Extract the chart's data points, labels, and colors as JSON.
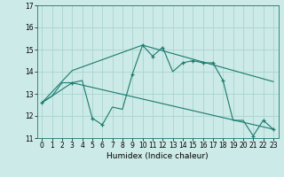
{
  "title": "",
  "xlabel": "Humidex (Indice chaleur)",
  "bg_color": "#cceae7",
  "line_color": "#1a7a6e",
  "grid_color": "#aad4d0",
  "xlim": [
    -0.5,
    23.5
  ],
  "ylim": [
    11,
    17
  ],
  "yticks": [
    11,
    12,
    13,
    14,
    15,
    16,
    17
  ],
  "xticks": [
    0,
    1,
    2,
    3,
    4,
    5,
    6,
    7,
    8,
    9,
    10,
    11,
    12,
    13,
    14,
    15,
    16,
    17,
    18,
    19,
    20,
    21,
    22,
    23
  ],
  "series1_x": [
    0,
    1,
    2,
    3,
    4,
    5,
    6,
    7,
    8,
    9,
    10,
    11,
    12,
    13,
    14,
    15,
    16,
    17,
    18,
    19,
    20,
    21,
    22,
    23
  ],
  "series1_y": [
    12.6,
    12.9,
    13.5,
    13.5,
    13.6,
    11.9,
    11.6,
    12.4,
    12.3,
    13.9,
    15.2,
    14.7,
    15.1,
    14.0,
    14.4,
    14.5,
    14.4,
    14.4,
    13.6,
    11.8,
    11.8,
    11.1,
    11.8,
    11.4
  ],
  "series2_x": [
    0,
    3,
    10,
    23
  ],
  "series2_y": [
    12.6,
    14.05,
    15.2,
    13.55
  ],
  "series3_x": [
    0,
    3,
    23
  ],
  "series3_y": [
    12.6,
    13.5,
    11.4
  ],
  "marker_x1": [
    0,
    3,
    5,
    6,
    9,
    10,
    11,
    12,
    14,
    15,
    16,
    17,
    18,
    21,
    22,
    23
  ],
  "marker_y1": [
    12.6,
    13.5,
    11.9,
    11.6,
    13.9,
    15.2,
    14.7,
    15.1,
    14.4,
    14.5,
    14.4,
    14.4,
    13.6,
    11.1,
    11.8,
    11.4
  ],
  "xlabel_fontsize": 6.5,
  "tick_fontsize": 5.5
}
